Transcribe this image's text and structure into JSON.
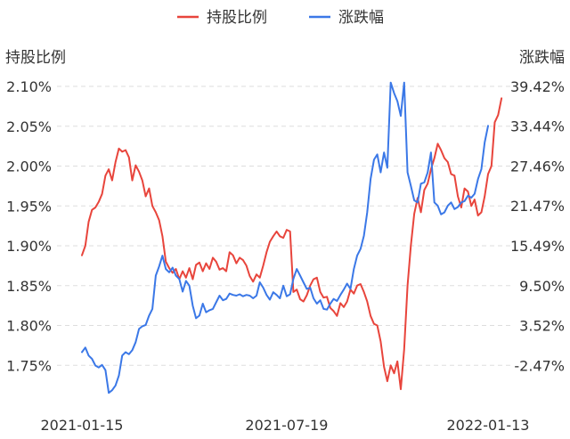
{
  "chart_data": {
    "type": "line",
    "legend": {
      "position": "top-center"
    },
    "y_left": {
      "label": "持股比例",
      "ticks": [
        "2.10%",
        "2.05%",
        "2.00%",
        "1.95%",
        "1.90%",
        "1.85%",
        "1.80%",
        "1.75%"
      ],
      "tick_values": [
        2.1,
        2.05,
        2.0,
        1.95,
        1.9,
        1.85,
        1.8,
        1.75
      ],
      "ylim": [
        1.7,
        2.1
      ]
    },
    "y_right": {
      "label": "涨跌幅",
      "ticks": [
        "39.42%",
        "33.44%",
        "27.46%",
        "21.47%",
        "15.49%",
        "9.50%",
        "3.52%",
        "-2.47%"
      ],
      "tick_values": [
        39.42,
        33.44,
        27.46,
        21.47,
        15.49,
        9.5,
        3.52,
        -2.47
      ],
      "ylim": [
        -8.45,
        39.42
      ]
    },
    "x_axis": {
      "ticks": [
        "2021-01-15",
        "2021-07-19",
        "2022-01-13"
      ],
      "tick_index": [
        0,
        61,
        121
      ],
      "n_points": 122
    },
    "grid": true,
    "series": [
      {
        "name": "持股比例",
        "color": "#e8453c",
        "axis": "left",
        "values": [
          1.888,
          1.9,
          1.93,
          1.945,
          1.948,
          1.955,
          1.965,
          1.988,
          1.996,
          1.982,
          2.005,
          2.022,
          2.018,
          2.02,
          2.011,
          1.982,
          2.001,
          1.993,
          1.982,
          1.962,
          1.972,
          1.95,
          1.942,
          1.932,
          1.912,
          1.88,
          1.872,
          1.866,
          1.871,
          1.858,
          1.868,
          1.86,
          1.872,
          1.858,
          1.876,
          1.879,
          1.868,
          1.878,
          1.871,
          1.885,
          1.88,
          1.87,
          1.872,
          1.868,
          1.892,
          1.888,
          1.878,
          1.885,
          1.882,
          1.875,
          1.862,
          1.855,
          1.864,
          1.86,
          1.875,
          1.892,
          1.905,
          1.912,
          1.918,
          1.912,
          1.91,
          1.92,
          1.918,
          1.842,
          1.845,
          1.833,
          1.83,
          1.838,
          1.85,
          1.858,
          1.86,
          1.842,
          1.835,
          1.836,
          1.822,
          1.818,
          1.812,
          1.828,
          1.823,
          1.83,
          1.845,
          1.84,
          1.85,
          1.852,
          1.842,
          1.83,
          1.812,
          1.802,
          1.8,
          1.78,
          1.748,
          1.73,
          1.75,
          1.74,
          1.755,
          1.72,
          1.77,
          1.85,
          1.9,
          1.94,
          1.96,
          1.942,
          1.97,
          1.978,
          1.996,
          2.01,
          2.028,
          2.02,
          2.01,
          2.005,
          1.99,
          1.988,
          1.962,
          1.948,
          1.972,
          1.968,
          1.95,
          1.958,
          1.938,
          1.942,
          1.962,
          1.99,
          2.0,
          2.055,
          2.064,
          2.085
        ]
      },
      {
        "name": "涨跌幅",
        "color": "#3b78e7",
        "axis": "right",
        "values": [
          -0.5,
          0.2,
          -1.0,
          -1.5,
          -2.5,
          -2.8,
          -2.4,
          -3.2,
          -6.6,
          -6.2,
          -5.5,
          -4.0,
          -1.0,
          -0.5,
          -0.8,
          -0.2,
          1.0,
          3.0,
          3.4,
          3.6,
          5.0,
          6.0,
          11.0,
          12.4,
          14.0,
          12.0,
          11.5,
          12.2,
          11.0,
          10.5,
          8.6,
          10.2,
          9.5,
          6.5,
          4.6,
          5.0,
          6.8,
          5.5,
          5.8,
          6.0,
          7.0,
          8.0,
          7.3,
          7.5,
          8.3,
          8.1,
          8.0,
          8.2,
          7.9,
          8.1,
          8.0,
          7.6,
          8.0,
          10.0,
          9.2,
          8.1,
          7.4,
          8.5,
          8.1,
          7.6,
          9.5,
          7.9,
          8.2,
          10.5,
          12.0,
          11.0,
          10.0,
          9.0,
          9.2,
          7.6,
          6.8,
          7.3,
          6.0,
          5.9,
          6.8,
          7.5,
          7.2,
          8.1,
          8.9,
          9.8,
          9.0,
          12.0,
          14.0,
          15.0,
          17.0,
          20.5,
          25.5,
          28.4,
          29.2,
          26.5,
          29.5,
          27.2,
          40.0,
          38.4,
          37.2,
          35.0,
          40.0,
          26.5,
          24.5,
          22.3,
          22.0,
          24.8,
          25.0,
          26.5,
          29.5,
          22.0,
          21.5,
          20.2,
          20.5,
          21.5,
          22.0,
          21.0,
          21.3,
          22.0,
          22.2,
          23.0,
          22.7,
          23.3,
          25.5,
          27.0,
          31.0,
          33.5
        ]
      }
    ]
  }
}
